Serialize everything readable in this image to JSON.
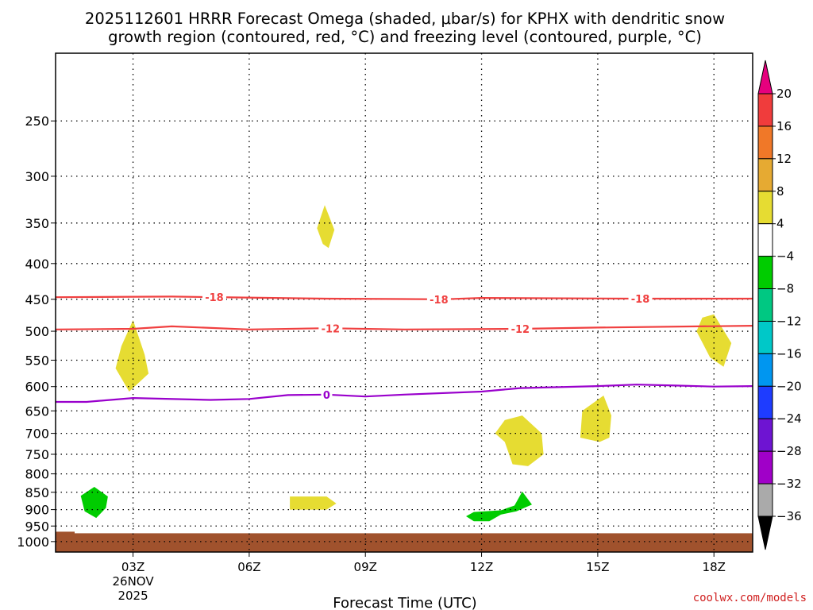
{
  "title": {
    "line1": "2025112601 HRRR Forecast Omega (shaded, μbar/s) for KPHX with dendritic snow",
    "line2": "growth region (contoured, red, °C) and freezing level (contoured, purple, °C)"
  },
  "credit": "coolwx.com/models",
  "colors": {
    "ground": "#a0522d",
    "dgz_contour": "#f04040",
    "freezing_contour": "#9900cc",
    "omega_positive": "#e6dc32",
    "omega_negative": "#00cc00"
  },
  "chart_data": {
    "type": "contour",
    "xlabel": "Forecast Time (UTC)",
    "x_ticks": [
      {
        "hour": 3,
        "label": "03Z",
        "date_line1": "26NOV",
        "date_line2": "2025"
      },
      {
        "hour": 6,
        "label": "06Z"
      },
      {
        "hour": 9,
        "label": "09Z"
      },
      {
        "hour": 12,
        "label": "12Z"
      },
      {
        "hour": 15,
        "label": "15Z"
      },
      {
        "hour": 18,
        "label": "18Z"
      }
    ],
    "xlim": [
      1,
      19
    ],
    "ylabel": "",
    "y_scale": "log-pressure",
    "ylim_hpa": [
      1035,
      200
    ],
    "y_ticks": [
      250,
      300,
      350,
      400,
      450,
      500,
      550,
      600,
      650,
      700,
      750,
      800,
      850,
      900,
      950,
      1000
    ],
    "grid": true,
    "surface_pressure_hpa": 973,
    "colorbar": {
      "units": "μbar/s",
      "labels": [
        "20",
        "16",
        "12",
        "8",
        "4",
        "−4",
        "−8",
        "−12",
        "−16",
        "−20",
        "−24",
        "−28",
        "−32",
        "−36"
      ],
      "bins": [
        {
          "lo": 20,
          "hi": null,
          "color": "#e6007e"
        },
        {
          "lo": 16,
          "hi": 20,
          "color": "#f03c3c"
        },
        {
          "lo": 12,
          "hi": 16,
          "color": "#f07828"
        },
        {
          "lo": 8,
          "hi": 12,
          "color": "#e6aa32"
        },
        {
          "lo": 4,
          "hi": 8,
          "color": "#e6dc32"
        },
        {
          "lo": -4,
          "hi": 4,
          "color": "#ffffff"
        },
        {
          "lo": -8,
          "hi": -4,
          "color": "#00cc00"
        },
        {
          "lo": -12,
          "hi": -8,
          "color": "#00c882"
        },
        {
          "lo": -16,
          "hi": -12,
          "color": "#00c8c8"
        },
        {
          "lo": -20,
          "hi": -16,
          "color": "#0096f0"
        },
        {
          "lo": -24,
          "hi": -20,
          "color": "#1e3cff"
        },
        {
          "lo": -28,
          "hi": -24,
          "color": "#6e14d2"
        },
        {
          "lo": -32,
          "hi": -28,
          "color": "#a000c8"
        },
        {
          "lo": -36,
          "hi": -32,
          "color": "#aaaaaa"
        },
        {
          "lo": null,
          "hi": -36,
          "color": "#000000"
        }
      ]
    },
    "contours": [
      {
        "name": "dgz",
        "value": -18,
        "label": "-18",
        "color": "#f04040",
        "label_hours": [
          5.1,
          10.9,
          16.1
        ],
        "points": [
          [
            1,
            447
          ],
          [
            4,
            446
          ],
          [
            8,
            449
          ],
          [
            11,
            450
          ],
          [
            12,
            448
          ],
          [
            16,
            449
          ],
          [
            19,
            449
          ]
        ]
      },
      {
        "name": "dgz",
        "value": -12,
        "label": "-12",
        "color": "#f04040",
        "label_hours": [
          8.1,
          13.0
        ],
        "points": [
          [
            1,
            497
          ],
          [
            3,
            496
          ],
          [
            4,
            492
          ],
          [
            6,
            497
          ],
          [
            8,
            495
          ],
          [
            10,
            497
          ],
          [
            13,
            496
          ],
          [
            15,
            494
          ],
          [
            19,
            491
          ]
        ]
      },
      {
        "name": "freezing_level",
        "value": 0,
        "label": "0",
        "color": "#9900cc",
        "label_hours": [
          8.0
        ],
        "points": [
          [
            1,
            631
          ],
          [
            1.8,
            631
          ],
          [
            3,
            623
          ],
          [
            5,
            627
          ],
          [
            6,
            625
          ],
          [
            7,
            617
          ],
          [
            8,
            616
          ],
          [
            9,
            620
          ],
          [
            10,
            616
          ],
          [
            12,
            610
          ],
          [
            13,
            603
          ],
          [
            15,
            599
          ],
          [
            16,
            596
          ],
          [
            17,
            598
          ],
          [
            18,
            600
          ],
          [
            19,
            599
          ]
        ]
      }
    ],
    "omega_regions": [
      {
        "name": "omega-region-03z-mid",
        "omega_bin": "4 to 8",
        "points": [
          [
            3,
            482
          ],
          [
            3.3,
            540
          ],
          [
            3.4,
            575
          ],
          [
            2.9,
            610
          ],
          [
            2.55,
            565
          ],
          [
            2.7,
            525
          ]
        ]
      },
      {
        "name": "omega-region-08z-upper",
        "omega_bin": "4 to 8",
        "points": [
          [
            7.95,
            330
          ],
          [
            8.2,
            358
          ],
          [
            8.05,
            380
          ],
          [
            7.9,
            375
          ],
          [
            7.75,
            356
          ]
        ]
      },
      {
        "name": "omega-region-18z-mid",
        "omega_bin": "4 to 8",
        "points": [
          [
            18,
            473
          ],
          [
            18.45,
            520
          ],
          [
            18.25,
            562
          ],
          [
            17.9,
            545
          ],
          [
            17.55,
            500
          ],
          [
            17.7,
            478
          ]
        ]
      },
      {
        "name": "omega-region-13z-low",
        "omega_bin": "4 to 8",
        "points": [
          [
            13.05,
            660
          ],
          [
            13.55,
            700
          ],
          [
            13.6,
            750
          ],
          [
            13.2,
            780
          ],
          [
            12.8,
            775
          ],
          [
            12.6,
            720
          ],
          [
            12.35,
            700
          ],
          [
            12.6,
            670
          ]
        ]
      },
      {
        "name": "omega-region-15z-low",
        "omega_bin": "4 to 8",
        "points": [
          [
            15.15,
            618
          ],
          [
            15.35,
            660
          ],
          [
            15.3,
            710
          ],
          [
            15.05,
            720
          ],
          [
            14.55,
            710
          ],
          [
            14.6,
            650
          ]
        ]
      },
      {
        "name": "omega-region-08z-low",
        "omega_bin": "4 to 8",
        "points": [
          [
            7.05,
            862
          ],
          [
            8,
            862
          ],
          [
            8.25,
            882
          ],
          [
            8,
            900
          ],
          [
            7.05,
            900
          ]
        ]
      },
      {
        "name": "omega-region-02z-low",
        "omega_bin": "-4 to -8",
        "points": [
          [
            2,
            835
          ],
          [
            2.35,
            862
          ],
          [
            2.3,
            895
          ],
          [
            2.05,
            925
          ],
          [
            1.75,
            905
          ],
          [
            1.65,
            860
          ]
        ]
      },
      {
        "name": "omega-region-13z-base",
        "omega_bin": "-4 to -8",
        "points": [
          [
            13.05,
            848
          ],
          [
            13.3,
            885
          ],
          [
            12.9,
            905
          ],
          [
            12.5,
            915
          ],
          [
            12.2,
            935
          ],
          [
            11.8,
            935
          ],
          [
            11.6,
            920
          ],
          [
            11.8,
            907
          ],
          [
            12.5,
            902
          ],
          [
            12.85,
            888
          ]
        ]
      }
    ]
  }
}
